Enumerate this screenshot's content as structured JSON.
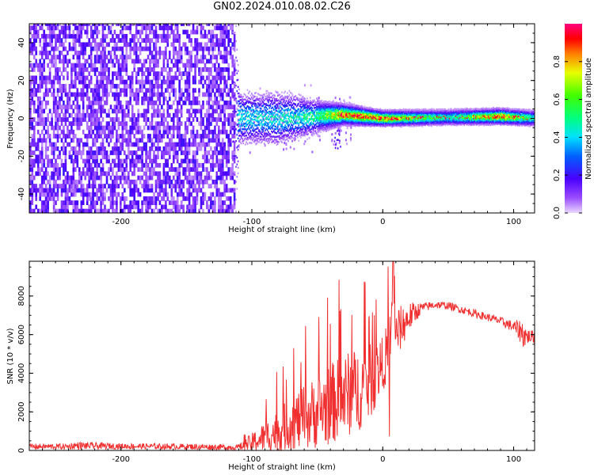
{
  "title": "GN02.2024.010.08.02.C26",
  "colorbar": {
    "label": "Normalized spectral amplitude",
    "ticks": [
      0.0,
      0.2,
      0.4,
      0.6,
      0.8
    ],
    "tick_labels": [
      "0.0",
      "0.2",
      "0.4",
      "0.6",
      "0.8"
    ],
    "range": [
      0.0,
      1.0
    ],
    "colormap": "rainbow (purple-blue-cyan-green-yellow-red-magenta)"
  },
  "chart_data": [
    {
      "type": "heatmap",
      "xlabel": "Height of straight line (km)",
      "ylabel": "Frequency (Hz)",
      "xlim": [
        -270,
        116
      ],
      "ylim": [
        -50,
        50
      ],
      "x_ticks": [
        -200,
        -100,
        0,
        100
      ],
      "x_tick_labels": [
        "-200",
        "-100",
        "0",
        "100"
      ],
      "y_ticks": [
        -40,
        -20,
        0,
        20,
        40
      ],
      "y_tick_labels": [
        "-40",
        "-20",
        "0",
        "20",
        "40"
      ],
      "description_points": {
        "noise_region_x": [
          -270,
          -113
        ],
        "signal_start_x": -115,
        "signal_band_frequency_hz": 0
      },
      "profile": [
        {
          "x": -270,
          "center_hz": 0,
          "halfwidth_hz": 50,
          "peak": 0.15
        },
        {
          "x": -113,
          "center_hz": 0,
          "halfwidth_hz": 50,
          "peak": 0.15
        },
        {
          "x": -110,
          "center_hz": 0,
          "halfwidth_hz": 10,
          "peak": 0.45
        },
        {
          "x": -80,
          "center_hz": 0,
          "halfwidth_hz": 10,
          "peak": 0.45
        },
        {
          "x": -50,
          "center_hz": 1,
          "halfwidth_hz": 6,
          "peak": 0.55
        },
        {
          "x": -30,
          "center_hz": 2,
          "halfwidth_hz": 4,
          "peak": 0.9
        },
        {
          "x": 0,
          "center_hz": 0,
          "halfwidth_hz": 3,
          "peak": 0.85
        },
        {
          "x": 50,
          "center_hz": 0.5,
          "halfwidth_hz": 3,
          "peak": 0.5
        },
        {
          "x": 90,
          "center_hz": 1,
          "halfwidth_hz": 3,
          "peak": 0.9
        },
        {
          "x": 116,
          "center_hz": 0,
          "halfwidth_hz": 3,
          "peak": 0.5
        }
      ]
    },
    {
      "type": "line",
      "xlabel": "Height of straight line (km)",
      "ylabel": "SNR (10 * v/v)",
      "xlim": [
        -270,
        116
      ],
      "ylim": [
        0,
        9800
      ],
      "x_ticks": [
        -200,
        -100,
        0,
        100
      ],
      "x_tick_labels": [
        "-200",
        "-100",
        "0",
        "100"
      ],
      "y_ticks": [
        0,
        2000,
        4000,
        6000,
        8000
      ],
      "y_tick_labels": [
        "0",
        "2000",
        "4000",
        "6000",
        "8000"
      ],
      "series_color": "#f03030",
      "series": [
        {
          "x": [
            -270,
            -240,
            -235,
            -200,
            -150,
            -110,
            -100,
            -90,
            -80,
            -70,
            -60,
            -50,
            -40,
            -30,
            -20,
            -10,
            0,
            5,
            8,
            10,
            20,
            30,
            40,
            50,
            60,
            70,
            80,
            90,
            100,
            105,
            108,
            110,
            116
          ],
          "y": [
            200,
            200,
            250,
            220,
            200,
            160,
            400,
            700,
            1000,
            1400,
            1700,
            2000,
            2400,
            2800,
            3100,
            3500,
            4500,
            5300,
            9800,
            6000,
            6900,
            7400,
            7550,
            7500,
            7300,
            7100,
            6900,
            6700,
            6400,
            6200,
            6000,
            5900,
            5900
          ],
          "spread": [
            150,
            150,
            200,
            150,
            150,
            150,
            500,
            800,
            1100,
            1400,
            1700,
            1900,
            2100,
            2200,
            2200,
            2000,
            1400,
            1600,
            1500,
            1400,
            800,
            250,
            200,
            200,
            200,
            200,
            200,
            220,
            300,
            600,
            800,
            400,
            300
          ]
        }
      ]
    }
  ]
}
